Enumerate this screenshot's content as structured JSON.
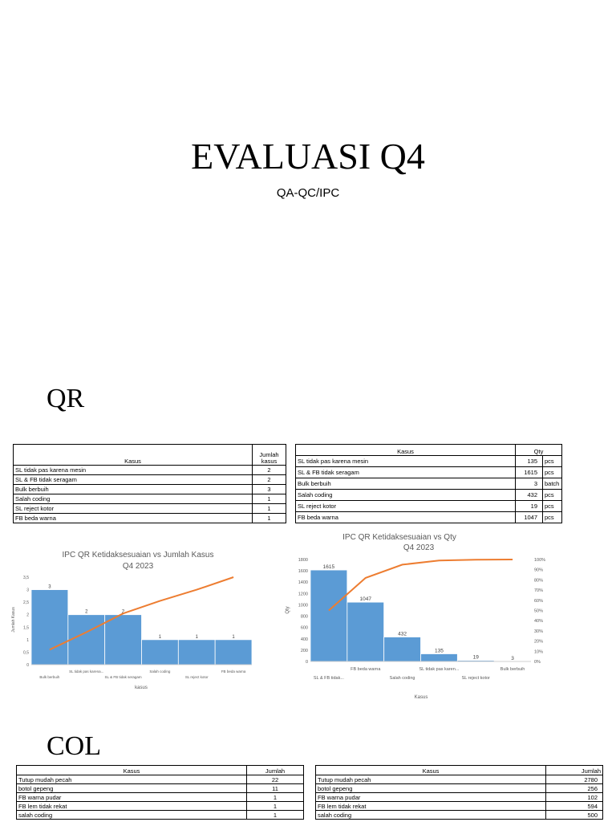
{
  "title": "EVALUASI Q4",
  "subtitle": "QA-QC/IPC",
  "sections": {
    "qr": "QR",
    "col": "COL"
  },
  "qr_table_cases": {
    "col_kasus": "Kasus",
    "col_jumlah": "Jumlah kasus",
    "rows": [
      {
        "kasus": "SL tidak pas karena mesin",
        "jumlah": "2"
      },
      {
        "kasus": "SL & FB tidak seragam",
        "jumlah": "2"
      },
      {
        "kasus": "Bulk berbuih",
        "jumlah": "3"
      },
      {
        "kasus": "Salah coding",
        "jumlah": "1"
      },
      {
        "kasus": "SL reject kotor",
        "jumlah": "1"
      },
      {
        "kasus": "FB beda warna",
        "jumlah": "1"
      }
    ]
  },
  "qr_table_qty": {
    "col_kasus": "Kasus",
    "col_qty": "Qty",
    "rows": [
      {
        "kasus": "SL tidak pas karena mesin",
        "qty": "135",
        "unit": "pcs"
      },
      {
        "kasus": "SL & FB tidak seragam",
        "qty": "1615",
        "unit": "pcs"
      },
      {
        "kasus": "Bulk berbuih",
        "qty": "3",
        "unit": "batch"
      },
      {
        "kasus": "Salah coding",
        "qty": "432",
        "unit": "pcs"
      },
      {
        "kasus": "SL reject kotor",
        "qty": "19",
        "unit": "pcs"
      },
      {
        "kasus": "FB beda warna",
        "qty": "1047",
        "unit": "pcs"
      }
    ]
  },
  "col_table_cases": {
    "col_kasus": "Kasus",
    "col_jumlah": "Jumlah",
    "rows": [
      {
        "kasus": "Tutup mudah pecah",
        "jumlah": "22"
      },
      {
        "kasus": "botol gepeng",
        "jumlah": "11"
      },
      {
        "kasus": "FB warna pudar",
        "jumlah": "1"
      },
      {
        "kasus": "FB lem tidak rekat",
        "jumlah": "1"
      },
      {
        "kasus": "salah coding",
        "jumlah": "1"
      }
    ]
  },
  "col_table_qty": {
    "col_kasus": "Kasus",
    "col_jumlah": "Jumlah",
    "rows": [
      {
        "kasus": "Tutup mudah pecah",
        "jumlah": "2780"
      },
      {
        "kasus": "botol gepeng",
        "jumlah": "256"
      },
      {
        "kasus": "FB warna pudar",
        "jumlah": "102"
      },
      {
        "kasus": "FB lem tidak rekat",
        "jumlah": "594"
      },
      {
        "kasus": "salah coding",
        "jumlah": "500"
      }
    ]
  },
  "colors": {
    "bar": "#5b9bd5",
    "line": "#ed7d31",
    "axis": "#bfbfbf"
  },
  "chart_data": [
    {
      "type": "bar",
      "title": "IPC QR Ketidaksesuaian vs Jumlah Kasus",
      "subtitle": "Q4 2023",
      "xlabel": "kasus",
      "ylabel": "Jumlah Kasus",
      "categories": [
        "Bulk berbuih",
        "SL tidak pas karena...",
        "SL & FB tidak seragam",
        "Salah coding",
        "SL reject kotor",
        "FB beda warna"
      ],
      "values": [
        3,
        2,
        2,
        1,
        1,
        1
      ],
      "data_labels": [
        "3",
        "2",
        "2",
        "1",
        "1",
        "1"
      ],
      "line_values": [
        0.6,
        1.3,
        2.05,
        2.55,
        3.0,
        3.5
      ],
      "ylim": [
        0,
        3.5
      ],
      "yticks": [
        "0",
        "0,5",
        "1",
        "1,5",
        "2",
        "2,5",
        "3",
        "3,5"
      ],
      "grid": false,
      "legend": "none"
    },
    {
      "type": "bar",
      "title": "IPC QR Ketidaksesuaian vs Qty",
      "subtitle": "Q4 2023",
      "xlabel": "Kasus",
      "ylabel": "Qty",
      "categories": [
        "SL & FB tidak...",
        "FB beda warna",
        "Salah coding",
        "SL tidak pas karen...",
        "SL reject kotor",
        "Bulk berbuih"
      ],
      "values": [
        1615,
        1047,
        432,
        135,
        19,
        3
      ],
      "data_labels": [
        "1615",
        "1047",
        "432",
        "135",
        "19",
        "3"
      ],
      "line_values": [
        50,
        82,
        95,
        99,
        99.8,
        100
      ],
      "ylim": [
        0,
        1800
      ],
      "yticks": [
        "0",
        "200",
        "400",
        "600",
        "800",
        "1000",
        "1200",
        "1400",
        "1600",
        "1800"
      ],
      "y2ticks": [
        "0%",
        "10%",
        "20%",
        "30%",
        "40%",
        "50%",
        "60%",
        "70%",
        "80%",
        "90%",
        "100%"
      ],
      "grid": false,
      "legend": "none"
    }
  ]
}
